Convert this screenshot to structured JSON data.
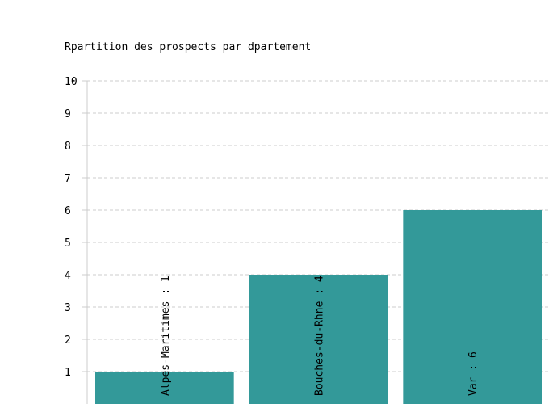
{
  "chart_data": {
    "type": "bar",
    "title": "Rpartition des prospects par dpartement",
    "categories": [
      "Alpes-Maritimes",
      "Bouches-du-Rhne",
      "Var"
    ],
    "values": [
      1,
      4,
      6
    ],
    "bar_labels": [
      "Alpes-Maritimes : 1",
      "Bouches-du-Rhne : 4",
      "Var : 6"
    ],
    "y_ticks": [
      "1",
      "2",
      "3",
      "4",
      "5",
      "6",
      "7",
      "8",
      "9",
      "10"
    ],
    "ylim": [
      0,
      10
    ],
    "grid": true,
    "bar_color": "#339999",
    "xlabel": "",
    "ylabel": ""
  }
}
